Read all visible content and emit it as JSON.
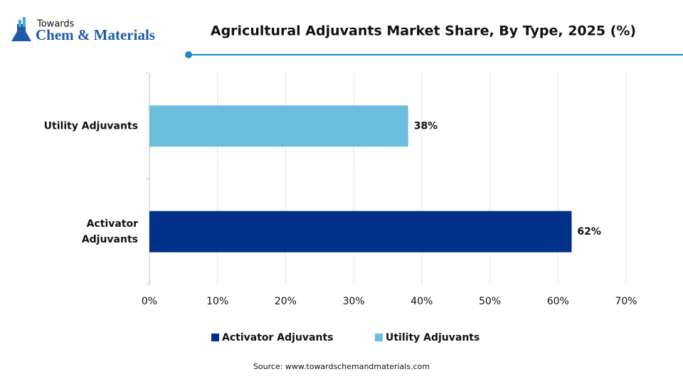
{
  "logo": {
    "line1": "Towards",
    "line2": "Chem & Materials"
  },
  "chart_data": {
    "type": "hbar",
    "title": "Agricultural Adjuvants Market  Share, By Type, 2025 (%)",
    "categories": [
      "Activator Adjuvants",
      "Utility Adjuvants"
    ],
    "series": [
      {
        "name": "Activator Adjuvants",
        "color": "#003087",
        "values": [
          62,
          null
        ],
        "value_labels": [
          "62%",
          null
        ]
      },
      {
        "name": "Utility Adjuvants",
        "color": "#6bbfdc",
        "values": [
          null,
          38
        ],
        "value_labels": [
          null,
          "38%"
        ]
      }
    ],
    "xlim": [
      0,
      70
    ],
    "xticks": [
      {
        "value": 0,
        "label": "0%"
      },
      {
        "value": 10,
        "label": "10%"
      },
      {
        "value": 20,
        "label": "20%"
      },
      {
        "value": 30,
        "label": "30%"
      },
      {
        "value": 40,
        "label": "40%"
      },
      {
        "value": 50,
        "label": "50%"
      },
      {
        "value": 60,
        "label": "60%"
      },
      {
        "value": 70,
        "label": "70%"
      }
    ],
    "grid": true,
    "legend": "bottom",
    "source": "Source: www.towardschemandmaterials.com"
  }
}
